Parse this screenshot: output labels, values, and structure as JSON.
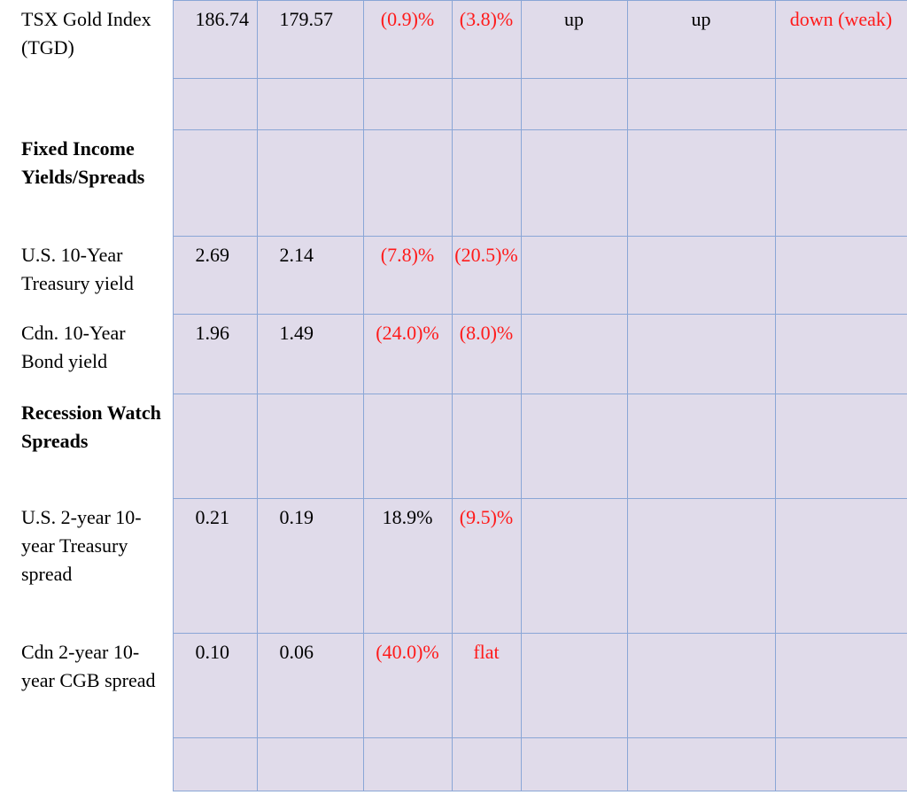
{
  "rows": [
    {
      "label": "TSX Gold Index (TGD)",
      "bold": false,
      "h": 88,
      "cells": [
        {
          "t": "186.74",
          "c": "#000"
        },
        {
          "t": "179.57",
          "c": "#000"
        },
        {
          "t": "(0.9)%",
          "c": "#ff1a1a"
        },
        {
          "t": "(3.8)%",
          "c": "#ff1a1a"
        },
        {
          "t": "up",
          "c": "#000"
        },
        {
          "t": "up",
          "c": "#000"
        },
        {
          "t": "down (weak)",
          "c": "#ff1a1a"
        }
      ]
    },
    {
      "label": "",
      "bold": false,
      "h": 58,
      "cells": [
        {
          "t": ""
        },
        {
          "t": ""
        },
        {
          "t": ""
        },
        {
          "t": ""
        },
        {
          "t": ""
        },
        {
          "t": ""
        },
        {
          "t": ""
        }
      ]
    },
    {
      "label": "Fixed Income Yields/Spreads",
      "bold": true,
      "h": 120,
      "cells": [
        {
          "t": ""
        },
        {
          "t": ""
        },
        {
          "t": ""
        },
        {
          "t": ""
        },
        {
          "t": ""
        },
        {
          "t": ""
        },
        {
          "t": ""
        }
      ]
    },
    {
      "label": "U.S. 10-Year Treasury yield",
      "bold": false,
      "h": 88,
      "cells": [
        {
          "t": "2.69",
          "c": "#000"
        },
        {
          "t": "2.14",
          "c": "#000"
        },
        {
          "t": "(7.8)%",
          "c": "#ff1a1a"
        },
        {
          "t": "(20.5)%",
          "c": "#ff1a1a"
        },
        {
          "t": ""
        },
        {
          "t": ""
        },
        {
          "t": ""
        }
      ]
    },
    {
      "label": "Cdn. 10-Year Bond yield",
      "bold": false,
      "h": 90,
      "cells": [
        {
          "t": "1.96",
          "c": "#000"
        },
        {
          "t": "1.49",
          "c": "#000"
        },
        {
          "t": "(24.0)%",
          "c": "#ff1a1a"
        },
        {
          "t": "(8.0)%",
          "c": "#ff1a1a"
        },
        {
          "t": ""
        },
        {
          "t": ""
        },
        {
          "t": ""
        }
      ]
    },
    {
      "label": "Recession Watch Spreads",
      "bold": true,
      "h": 118,
      "cells": [
        {
          "t": ""
        },
        {
          "t": ""
        },
        {
          "t": ""
        },
        {
          "t": ""
        },
        {
          "t": ""
        },
        {
          "t": ""
        },
        {
          "t": ""
        }
      ]
    },
    {
      "label": "U.S. 2-year 10-year Treasury spread",
      "bold": false,
      "h": 152,
      "cells": [
        {
          "t": "0.21",
          "c": "#000"
        },
        {
          "t": "0.19",
          "c": "#000"
        },
        {
          "t": "18.9%",
          "c": "#000"
        },
        {
          "t": "(9.5)%",
          "c": "#ff1a1a"
        },
        {
          "t": ""
        },
        {
          "t": ""
        },
        {
          "t": ""
        }
      ]
    },
    {
      "label": "Cdn 2-year 10-year CGB spread",
      "bold": false,
      "h": 118,
      "cells": [
        {
          "t": "0.10",
          "c": "#000"
        },
        {
          "t": "0.06",
          "c": "#000"
        },
        {
          "t": "(40.0)%",
          "c": "#ff1a1a"
        },
        {
          "t": "flat",
          "c": "#ff1a1a"
        },
        {
          "t": ""
        },
        {
          "t": ""
        },
        {
          "t": ""
        }
      ]
    },
    {
      "label": "",
      "bold": false,
      "h": 60,
      "cells": [
        {
          "t": ""
        },
        {
          "t": ""
        },
        {
          "t": ""
        },
        {
          "t": ""
        },
        {
          "t": ""
        },
        {
          "t": ""
        },
        {
          "t": ""
        }
      ]
    }
  ]
}
